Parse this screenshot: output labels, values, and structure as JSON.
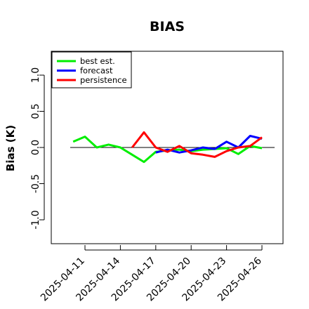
{
  "colors": {
    "best_est": "#00ee00",
    "forecast": "#0000ff",
    "persistence": "#ff0000",
    "zero_line": "#000000",
    "highlight_tick": "#228b22"
  },
  "chart_data": {
    "type": "line",
    "title": "BIAS",
    "xlabel": "",
    "ylabel": "Bias (K)",
    "ylim": [
      -1.3,
      1.35
    ],
    "yticks": [
      -1.0,
      -0.5,
      0.0,
      0.5,
      1.0
    ],
    "ytick_labels": [
      "-1.0",
      "-0.5",
      "0.0",
      "0.5",
      "1.0"
    ],
    "xlim": [
      "2025-04-09",
      "2025-04-27"
    ],
    "xticks": [
      "2025-04-11",
      "2025-04-14",
      "2025-04-17",
      "2025-04-20",
      "2025-04-23",
      "2025-04-26"
    ],
    "highlighted_xtick": "2025-04-17",
    "grid": false,
    "legend_position": "top-left",
    "reference_line": 0.0,
    "series": [
      {
        "name": "best est.",
        "color_key": "best_est",
        "x": [
          "2025-04-10",
          "2025-04-11",
          "2025-04-12",
          "2025-04-13",
          "2025-04-14",
          "2025-04-15",
          "2025-04-16",
          "2025-04-17",
          "2025-04-18",
          "2025-04-19",
          "2025-04-20",
          "2025-04-21",
          "2025-04-22",
          "2025-04-23",
          "2025-04-24",
          "2025-04-25",
          "2025-04-26"
        ],
        "values": [
          0.08,
          0.15,
          0.0,
          0.04,
          0.0,
          -0.1,
          -0.2,
          -0.06,
          -0.04,
          -0.03,
          -0.05,
          -0.03,
          -0.02,
          -0.01,
          -0.09,
          0.02,
          -0.01
        ]
      },
      {
        "name": "forecast",
        "color_key": "forecast",
        "x": [
          "2025-04-17",
          "2025-04-18",
          "2025-04-19",
          "2025-04-20",
          "2025-04-21",
          "2025-04-22",
          "2025-04-23",
          "2025-04-24",
          "2025-04-25",
          "2025-04-26"
        ],
        "values": [
          -0.07,
          -0.03,
          -0.07,
          -0.04,
          0.0,
          -0.02,
          0.08,
          0.0,
          0.16,
          0.12
        ]
      },
      {
        "name": "persistence",
        "color_key": "persistence",
        "x": [
          "2025-04-15",
          "2025-04-16",
          "2025-04-17",
          "2025-04-18",
          "2025-04-19",
          "2025-04-20",
          "2025-04-21",
          "2025-04-22",
          "2025-04-23",
          "2025-04-24",
          "2025-04-25",
          "2025-04-26"
        ],
        "values": [
          0.0,
          0.21,
          0.0,
          -0.06,
          0.02,
          -0.08,
          -0.1,
          -0.13,
          -0.05,
          0.0,
          0.02,
          0.14
        ]
      }
    ]
  }
}
